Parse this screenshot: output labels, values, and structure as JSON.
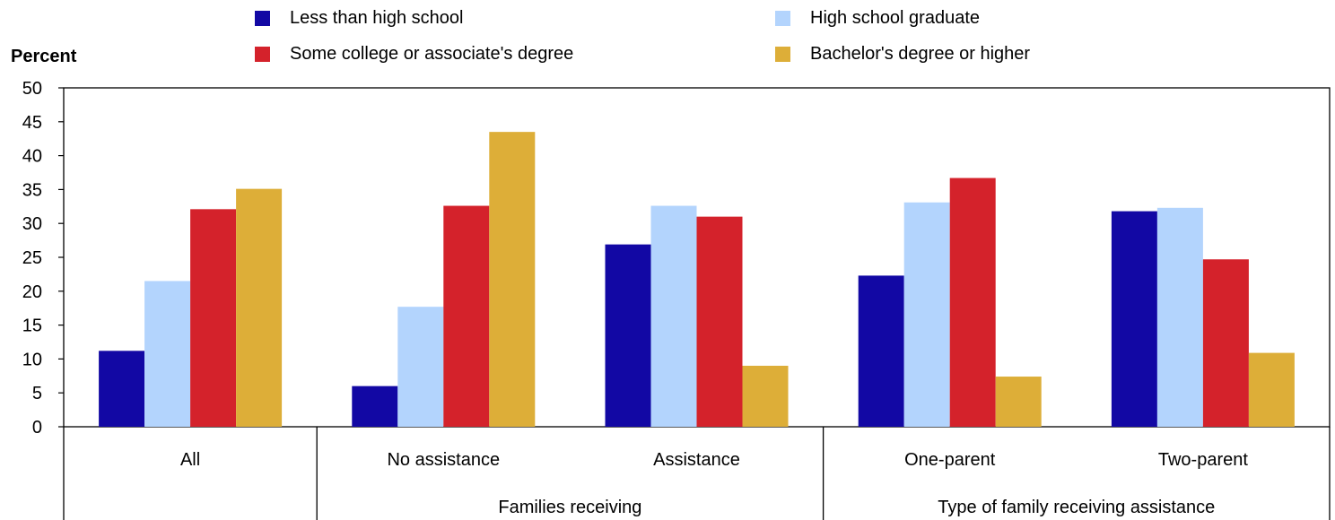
{
  "chart_data": {
    "type": "bar",
    "ylabel": "Percent",
    "ylim": [
      0,
      50
    ],
    "yticks": [
      0,
      5,
      10,
      15,
      20,
      25,
      30,
      35,
      40,
      45,
      50
    ],
    "categories": [
      "All",
      "No assistance",
      "Assistance",
      "One-parent",
      "Two-parent"
    ],
    "groups": [
      {
        "label": "",
        "categories": [
          "All"
        ]
      },
      {
        "label": "Families receiving",
        "categories": [
          "No assistance",
          "Assistance"
        ]
      },
      {
        "label": "Type of family  receiving assistance",
        "categories": [
          "One-parent",
          "Two-parent"
        ]
      }
    ],
    "series": [
      {
        "name": "Less than high school",
        "color": "#1208a4",
        "values": [
          11.2,
          6.0,
          26.9,
          22.3,
          31.8
        ]
      },
      {
        "name": "High school graduate",
        "color": "#b3d4fd",
        "values": [
          21.5,
          17.7,
          32.6,
          33.1,
          32.3
        ]
      },
      {
        "name": "Some college or associate's degree",
        "color": "#d4222b",
        "values": [
          32.1,
          32.6,
          31.0,
          36.7,
          24.7
        ]
      },
      {
        "name": "Bachelor's degree or higher",
        "color": "#ddae38",
        "values": [
          35.1,
          43.5,
          9.0,
          7.4,
          10.9
        ]
      }
    ],
    "grid": false,
    "legend_position": "top"
  }
}
